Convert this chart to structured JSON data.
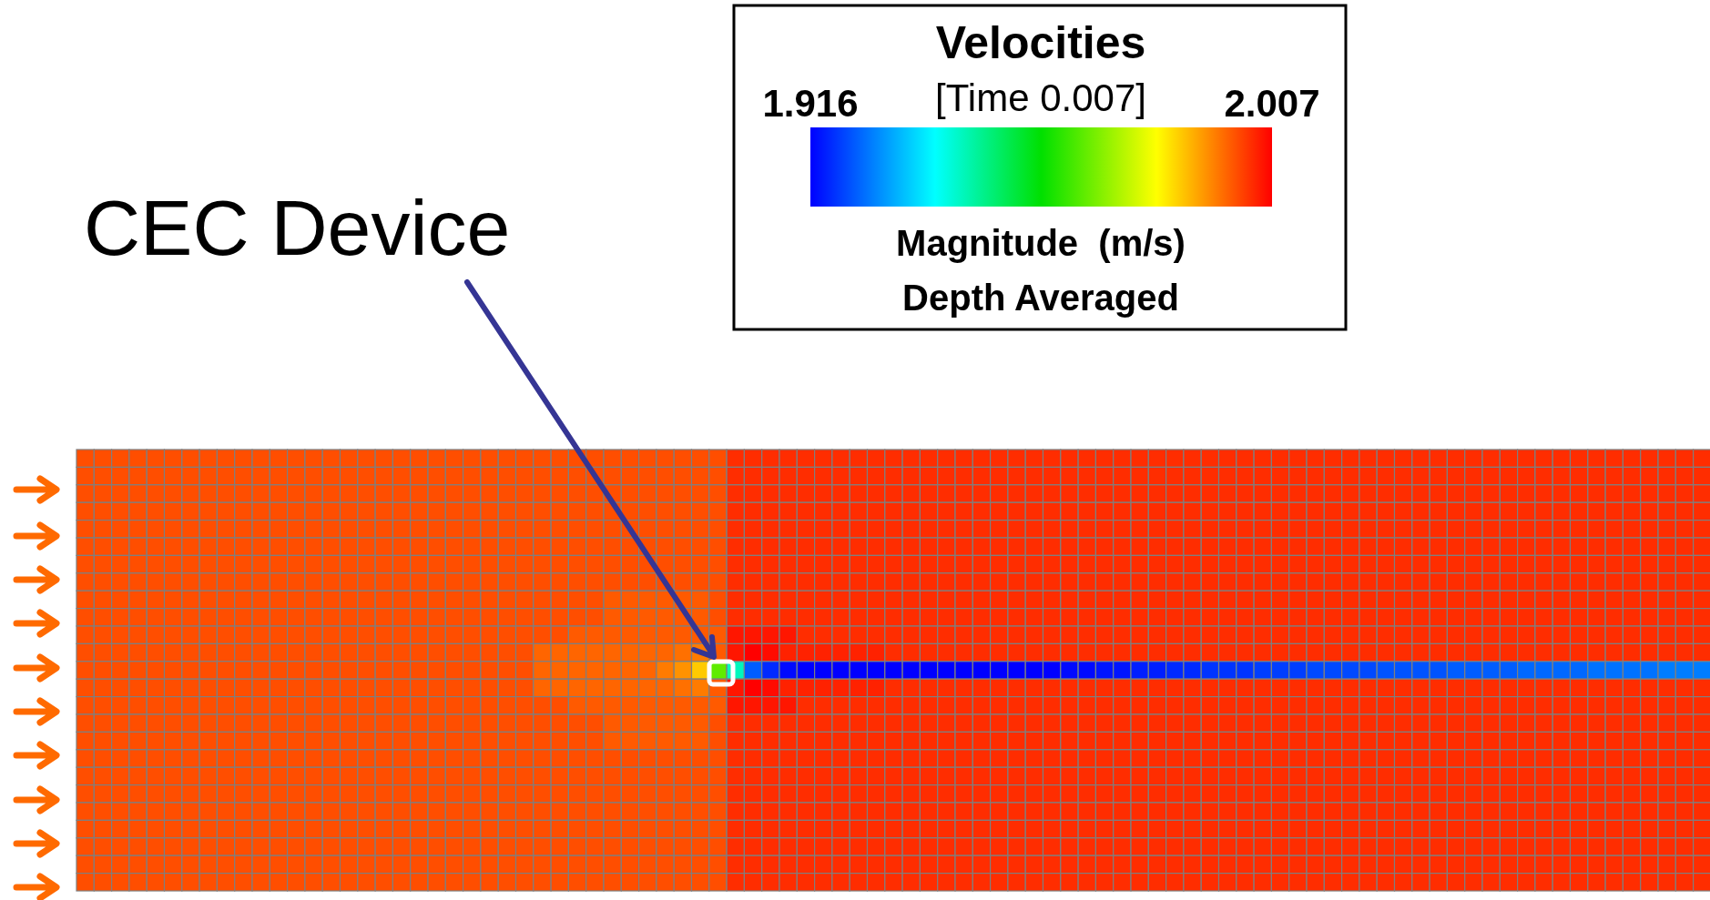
{
  "chart_data": {
    "type": "heatmap",
    "title": "Velocities",
    "subtitle": "[Time 0.007]",
    "clabel": "Magnitude  (m/s)",
    "annotations": [
      "Depth Averaged",
      "CEC Device"
    ],
    "clim": [
      1.916,
      2.007
    ],
    "cticks": [
      1.916,
      2.007
    ],
    "categories": [
      null,
      null,
      null,
      null,
      null,
      null,
      null,
      null,
      null,
      null,
      null,
      null,
      null,
      null,
      null,
      null,
      null,
      null,
      null,
      null,
      null,
      null,
      null,
      null,
      null,
      null,
      null,
      null,
      null,
      null,
      null,
      null,
      null,
      null,
      null,
      null,
      null,
      null,
      null,
      null,
      null,
      null,
      null,
      null,
      null,
      null,
      null,
      null,
      null,
      null,
      null,
      null,
      null,
      null,
      null,
      null,
      null,
      null,
      null,
      null,
      null,
      null,
      null,
      null,
      null,
      null,
      null,
      null,
      null,
      null,
      null,
      null,
      null,
      null,
      null,
      null,
      null,
      null,
      null,
      null,
      null,
      null,
      null,
      null,
      null,
      null,
      null,
      null,
      null,
      null,
      null,
      null,
      null
    ],
    "y_categories": [
      null,
      null,
      null,
      null,
      null,
      null,
      null,
      null,
      null,
      null,
      null,
      null,
      null,
      null,
      null,
      null,
      null,
      null,
      null,
      null,
      null,
      null,
      null,
      null,
      null
    ],
    "cells": [
      [
        2,
        2,
        2,
        2,
        2,
        2,
        2,
        2,
        2,
        2,
        2,
        2,
        2,
        2,
        2,
        2,
        2,
        2,
        2,
        2,
        2,
        2,
        2,
        2,
        2,
        2,
        2,
        2,
        2,
        2,
        2,
        2,
        2,
        2,
        2,
        2,
        2,
        2.003,
        2.003,
        2.003,
        2.003,
        2.003,
        2.003,
        2.003,
        2.003,
        2.003,
        2.003,
        2.003,
        2.003,
        2.003,
        2.003,
        2.003,
        2.003,
        2.003,
        2.003,
        2.003,
        2.003,
        2.003,
        2.003,
        2.003,
        2.003,
        2.003,
        2.003,
        2.003,
        2.003,
        2.003,
        2.003,
        2.003,
        2.003,
        2.003,
        2.003,
        2.003,
        2.003,
        2.003,
        2.003,
        2.003,
        2.003,
        2.003,
        2.003,
        2.003,
        2.003,
        2.003,
        2.003,
        2.003,
        2.003,
        2.003,
        2.003,
        2.003,
        2.003,
        2.003,
        2.003,
        2.003,
        2.003
      ],
      [
        2,
        2,
        2,
        2,
        2,
        2,
        2,
        2,
        2,
        2,
        2,
        2,
        2,
        2,
        2,
        2,
        2,
        2,
        2,
        2,
        2,
        2,
        2,
        2,
        2,
        2,
        2,
        2,
        2,
        2,
        2,
        2,
        2,
        2,
        2,
        2,
        2,
        2.003,
        2.003,
        2.003,
        2.003,
        2.003,
        2.003,
        2.003,
        2.003,
        2.003,
        2.003,
        2.003,
        2.003,
        2.003,
        2.003,
        2.003,
        2.003,
        2.003,
        2.003,
        2.003,
        2.003,
        2.003,
        2.003,
        2.003,
        2.003,
        2.003,
        2.003,
        2.003,
        2.003,
        2.003,
        2.003,
        2.003,
        2.003,
        2.003,
        2.003,
        2.003,
        2.003,
        2.003,
        2.003,
        2.003,
        2.003,
        2.003,
        2.003,
        2.003,
        2.003,
        2.003,
        2.003,
        2.003,
        2.003,
        2.003,
        2.003,
        2.003,
        2.003,
        2.003,
        2.003,
        2.003,
        2.003
      ],
      [
        2,
        2,
        2,
        2,
        2,
        2,
        2,
        2,
        2,
        2,
        2,
        2,
        2,
        2,
        2,
        2,
        2,
        2,
        2,
        2,
        2,
        2,
        2,
        2,
        2,
        2,
        2,
        2,
        2,
        2,
        2,
        2,
        2,
        2,
        2,
        2,
        2,
        2.003,
        2.003,
        2.003,
        2.003,
        2.003,
        2.003,
        2.003,
        2.003,
        2.003,
        2.003,
        2.003,
        2.003,
        2.003,
        2.003,
        2.003,
        2.003,
        2.003,
        2.003,
        2.003,
        2.003,
        2.003,
        2.003,
        2.003,
        2.003,
        2.003,
        2.003,
        2.003,
        2.003,
        2.003,
        2.003,
        2.003,
        2.003,
        2.003,
        2.003,
        2.003,
        2.003,
        2.003,
        2.003,
        2.003,
        2.003,
        2.003,
        2.003,
        2.003,
        2.003,
        2.003,
        2.003,
        2.003,
        2.003,
        2.003,
        2.003,
        2.003,
        2.003,
        2.003,
        2.003,
        2.003,
        2.003
      ],
      [
        2,
        2,
        2,
        2,
        2,
        2,
        2,
        2,
        2,
        2,
        2,
        2,
        2,
        2,
        2,
        2,
        2,
        2,
        2,
        2,
        2,
        2,
        2,
        2,
        2,
        2,
        2,
        2,
        2,
        2,
        2,
        2,
        2,
        2,
        2,
        2,
        2,
        2.003,
        2.003,
        2.003,
        2.003,
        2.003,
        2.003,
        2.003,
        2.003,
        2.003,
        2.003,
        2.003,
        2.003,
        2.003,
        2.003,
        2.003,
        2.003,
        2.003,
        2.003,
        2.003,
        2.003,
        2.003,
        2.003,
        2.003,
        2.003,
        2.003,
        2.003,
        2.003,
        2.003,
        2.003,
        2.003,
        2.003,
        2.003,
        2.003,
        2.003,
        2.003,
        2.003,
        2.003,
        2.003,
        2.003,
        2.003,
        2.003,
        2.003,
        2.003,
        2.003,
        2.003,
        2.003,
        2.003,
        2.003,
        2.003,
        2.003,
        2.003,
        2.003,
        2.003,
        2.003,
        2.003,
        2.003
      ],
      [
        2,
        2,
        2,
        2,
        2,
        2,
        2,
        2,
        2,
        2,
        2,
        2,
        2,
        2,
        2,
        2,
        2,
        2,
        2,
        2,
        2,
        2,
        2,
        2,
        2,
        2,
        2,
        2,
        2,
        2,
        2,
        2,
        2,
        2,
        2,
        2,
        2,
        2.003,
        2.003,
        2.003,
        2.003,
        2.003,
        2.003,
        2.003,
        2.003,
        2.003,
        2.003,
        2.003,
        2.003,
        2.003,
        2.003,
        2.003,
        2.003,
        2.003,
        2.003,
        2.003,
        2.003,
        2.003,
        2.003,
        2.003,
        2.003,
        2.003,
        2.003,
        2.003,
        2.003,
        2.003,
        2.003,
        2.003,
        2.003,
        2.003,
        2.003,
        2.003,
        2.003,
        2.003,
        2.003,
        2.003,
        2.003,
        2.003,
        2.003,
        2.003,
        2.003,
        2.003,
        2.003,
        2.003,
        2.003,
        2.003,
        2.003,
        2.003,
        2.003,
        2.003,
        2.003,
        2.003,
        2.003
      ],
      [
        2,
        2,
        2,
        2,
        2,
        2,
        2,
        2,
        2,
        2,
        2,
        2,
        2,
        2,
        2,
        2,
        2,
        2,
        2,
        2,
        2,
        2,
        2,
        2,
        2,
        2,
        2,
        2,
        2,
        2,
        2,
        2,
        2,
        2,
        2,
        2,
        2,
        2.003,
        2.003,
        2.003,
        2.003,
        2.003,
        2.003,
        2.003,
        2.003,
        2.003,
        2.003,
        2.003,
        2.003,
        2.003,
        2.003,
        2.003,
        2.003,
        2.003,
        2.003,
        2.003,
        2.003,
        2.003,
        2.003,
        2.003,
        2.003,
        2.003,
        2.003,
        2.003,
        2.003,
        2.003,
        2.003,
        2.003,
        2.003,
        2.003,
        2.003,
        2.003,
        2.003,
        2.003,
        2.003,
        2.003,
        2.003,
        2.003,
        2.003,
        2.003,
        2.003,
        2.003,
        2.003,
        2.003,
        2.003,
        2.003,
        2.003,
        2.003,
        2.003,
        2.003,
        2.003,
        2.003,
        2.003
      ],
      [
        2,
        2,
        2,
        2,
        2,
        2,
        2,
        2,
        2,
        2,
        2,
        2,
        2,
        2,
        2,
        2,
        2,
        2,
        2,
        2,
        2,
        2,
        2,
        2,
        2,
        2,
        2,
        2,
        2,
        2,
        2,
        2,
        2,
        2,
        2,
        2,
        2,
        2.003,
        2.003,
        2.003,
        2.003,
        2.003,
        2.003,
        2.003,
        2.003,
        2.003,
        2.003,
        2.003,
        2.003,
        2.003,
        2.003,
        2.003,
        2.003,
        2.003,
        2.003,
        2.003,
        2.003,
        2.003,
        2.003,
        2.003,
        2.003,
        2.003,
        2.003,
        2.003,
        2.003,
        2.003,
        2.003,
        2.003,
        2.003,
        2.003,
        2.003,
        2.003,
        2.003,
        2.003,
        2.003,
        2.003,
        2.003,
        2.003,
        2.003,
        2.003,
        2.003,
        2.003,
        2.003,
        2.003,
        2.003,
        2.003,
        2.003,
        2.003,
        2.003,
        2.003,
        2.003,
        2.003,
        2.003
      ],
      [
        2,
        2,
        2,
        2,
        2,
        2,
        2,
        2,
        2,
        2,
        2,
        2,
        2,
        2,
        2,
        2,
        2,
        2,
        2,
        2,
        2,
        2,
        2,
        2,
        2,
        2,
        2,
        2,
        2,
        2,
        2,
        2,
        2,
        2,
        2,
        2,
        2,
        2.003,
        2.003,
        2.003,
        2.003,
        2.003,
        2.003,
        2.003,
        2.003,
        2.003,
        2.003,
        2.003,
        2.003,
        2.003,
        2.003,
        2.003,
        2.003,
        2.003,
        2.003,
        2.003,
        2.003,
        2.003,
        2.003,
        2.003,
        2.003,
        2.003,
        2.003,
        2.003,
        2.003,
        2.003,
        2.003,
        2.003,
        2.003,
        2.003,
        2.003,
        2.003,
        2.003,
        2.003,
        2.003,
        2.003,
        2.003,
        2.003,
        2.003,
        2.003,
        2.003,
        2.003,
        2.003,
        2.003,
        2.003,
        2.003,
        2.003,
        2.003,
        2.003,
        2.003,
        2.003,
        2.003,
        2.003
      ],
      [
        2,
        2,
        2,
        2,
        2,
        2,
        2,
        2,
        2,
        2,
        2,
        2,
        2,
        2,
        2,
        2,
        2,
        2,
        2,
        2,
        2,
        2,
        2,
        2,
        2,
        2,
        2,
        2,
        2,
        2,
        1.999,
        1.999,
        1.999,
        1.999,
        1.999,
        1.999,
        2,
        2.003,
        2.003,
        2.003,
        2.003,
        2.003,
        2.003,
        2.003,
        2.003,
        2.003,
        2.003,
        2.003,
        2.003,
        2.003,
        2.003,
        2.003,
        2.003,
        2.003,
        2.003,
        2.003,
        2.003,
        2.003,
        2.003,
        2.003,
        2.003,
        2.003,
        2.003,
        2.003,
        2.003,
        2.003,
        2.003,
        2.003,
        2.003,
        2.003,
        2.003,
        2.003,
        2.003,
        2.003,
        2.003,
        2.003,
        2.003,
        2.003,
        2.003,
        2.003,
        2.003,
        2.003,
        2.003,
        2.003,
        2.003,
        2.003,
        2.003,
        2.003,
        2.003,
        2.003,
        2.003,
        2.003,
        2.003
      ],
      [
        2,
        2,
        2,
        2,
        2,
        2,
        2,
        2,
        2,
        2,
        2,
        2,
        2,
        2,
        2,
        2,
        2,
        2,
        2,
        2,
        2,
        2,
        2,
        2,
        2,
        2,
        2,
        2,
        2,
        2,
        1.999,
        1.999,
        1.999,
        1.999,
        1.999,
        1.999,
        2,
        2.003,
        2.003,
        2.003,
        2.003,
        2.003,
        2.003,
        2.003,
        2.003,
        2.003,
        2.003,
        2.003,
        2.003,
        2.003,
        2.003,
        2.003,
        2.003,
        2.003,
        2.003,
        2.003,
        2.003,
        2.003,
        2.003,
        2.003,
        2.003,
        2.003,
        2.003,
        2.003,
        2.003,
        2.003,
        2.003,
        2.003,
        2.003,
        2.003,
        2.003,
        2.003,
        2.003,
        2.003,
        2.003,
        2.003,
        2.003,
        2.003,
        2.003,
        2.003,
        2.003,
        2.003,
        2.003,
        2.003,
        2.003,
        2.003,
        2.003,
        2.003,
        2.003,
        2.003,
        2.003,
        2.003,
        2.003
      ],
      [
        2,
        2,
        2,
        2,
        2,
        2,
        2,
        2,
        2,
        2,
        2,
        2,
        2,
        2,
        2,
        2,
        2,
        2,
        2,
        2,
        2,
        2,
        2,
        2,
        2,
        2,
        2,
        2,
        1.999,
        1.999,
        1.999,
        1.999,
        1.999,
        1.999,
        1.999,
        1.999,
        1.999,
        2.005,
        2.005,
        2.005,
        2.005,
        2.003,
        2.003,
        2.003,
        2.003,
        2.003,
        2.003,
        2.003,
        2.003,
        2.003,
        2.003,
        2.003,
        2.003,
        2.003,
        2.003,
        2.003,
        2.003,
        2.003,
        2.003,
        2.003,
        2.003,
        2.003,
        2.003,
        2.003,
        2.003,
        2.003,
        2.003,
        2.003,
        2.003,
        2.003,
        2.003,
        2.003,
        2.003,
        2.003,
        2.003,
        2.003,
        2.003,
        2.003,
        2.003,
        2.003,
        2.003,
        2.003,
        2.003,
        2.003,
        2.003,
        2.003,
        2.003,
        2.003,
        2.003,
        2.003,
        2.003,
        2.003,
        2.003
      ],
      [
        2,
        2,
        2,
        2,
        2,
        2,
        2,
        2,
        2,
        2,
        2,
        2,
        2,
        2,
        2,
        2,
        2,
        2,
        2,
        2,
        2,
        2,
        2,
        2,
        2,
        2,
        1.998,
        1.998,
        1.998,
        1.998,
        1.998,
        1.998,
        1.998,
        1.998,
        1.997,
        1.996,
        1.999,
        2.005,
        2.007,
        2.006,
        2.004,
        2.004,
        2.004,
        2.004,
        2.004,
        2.004,
        2.003,
        2.003,
        2.003,
        2.003,
        2.003,
        2.003,
        2.003,
        2.003,
        2.003,
        2.003,
        2.003,
        2.003,
        2.003,
        2.003,
        2.003,
        2.003,
        2.003,
        2.003,
        2.003,
        2.003,
        2.003,
        2.003,
        2.003,
        2.003,
        2.003,
        2.003,
        2.003,
        2.003,
        2.003,
        2.003,
        2.003,
        2.003,
        2.003,
        2.003,
        2.003,
        2.003,
        2.003,
        2.003,
        2.003,
        2.003,
        2.003,
        2.003,
        2.003,
        2.003,
        2.003,
        2.003,
        2.003
      ],
      [
        2,
        2,
        2,
        2,
        2,
        2,
        2,
        2,
        2,
        2,
        2,
        2,
        2,
        2,
        2,
        2,
        2,
        2,
        2,
        2,
        2,
        2,
        2,
        2,
        2,
        2,
        1.998,
        1.998,
        1.998,
        1.998,
        1.998,
        1.998,
        1.998,
        1.996,
        1.994,
        1.989,
        1.97,
        1.946,
        1.925,
        1.92,
        1.917,
        1.916,
        1.916,
        1.916,
        1.916,
        1.916,
        1.916,
        1.916,
        1.916,
        1.916,
        1.916,
        1.916,
        1.916,
        1.916,
        1.916,
        1.916,
        1.917,
        1.917,
        1.918,
        1.918,
        1.919,
        1.919,
        1.92,
        1.92,
        1.921,
        1.921,
        1.921,
        1.922,
        1.922,
        1.922,
        1.923,
        1.923,
        1.923,
        1.923,
        1.924,
        1.924,
        1.924,
        1.924,
        1.925,
        1.925,
        1.925,
        1.925,
        1.926,
        1.926,
        1.926,
        1.926,
        1.927,
        1.927,
        1.927,
        1.927,
        1.928,
        1.928,
        1.928
      ],
      [
        2,
        2,
        2,
        2,
        2,
        2,
        2,
        2,
        2,
        2,
        2,
        2,
        2,
        2,
        2,
        2,
        2,
        2,
        2,
        2,
        2,
        2,
        2,
        2,
        2,
        2,
        1.998,
        1.998,
        1.998,
        1.998,
        1.998,
        1.998,
        1.998,
        1.998,
        1.997,
        1.996,
        1.999,
        2.005,
        2.007,
        2.006,
        2.004,
        2.004,
        2.004,
        2.004,
        2.004,
        2.004,
        2.003,
        2.003,
        2.003,
        2.003,
        2.003,
        2.003,
        2.003,
        2.003,
        2.003,
        2.003,
        2.003,
        2.003,
        2.003,
        2.003,
        2.003,
        2.003,
        2.003,
        2.003,
        2.003,
        2.003,
        2.003,
        2.003,
        2.003,
        2.003,
        2.003,
        2.003,
        2.003,
        2.003,
        2.003,
        2.003,
        2.003,
        2.003,
        2.003,
        2.003,
        2.003,
        2.003,
        2.003,
        2.003,
        2.003,
        2.003,
        2.003,
        2.003,
        2.003,
        2.003,
        2.003,
        2.003,
        2.003
      ],
      [
        2,
        2,
        2,
        2,
        2,
        2,
        2,
        2,
        2,
        2,
        2,
        2,
        2,
        2,
        2,
        2,
        2,
        2,
        2,
        2,
        2,
        2,
        2,
        2,
        2,
        2,
        2,
        2,
        1.999,
        1.999,
        1.999,
        1.999,
        1.999,
        1.999,
        1.999,
        1.999,
        1.999,
        2.005,
        2.005,
        2.005,
        2.005,
        2.003,
        2.003,
        2.003,
        2.003,
        2.003,
        2.003,
        2.003,
        2.003,
        2.003,
        2.003,
        2.003,
        2.003,
        2.003,
        2.003,
        2.003,
        2.003,
        2.003,
        2.003,
        2.003,
        2.003,
        2.003,
        2.003,
        2.003,
        2.003,
        2.003,
        2.003,
        2.003,
        2.003,
        2.003,
        2.003,
        2.003,
        2.003,
        2.003,
        2.003,
        2.003,
        2.003,
        2.003,
        2.003,
        2.003,
        2.003,
        2.003,
        2.003,
        2.003,
        2.003,
        2.003,
        2.003,
        2.003,
        2.003,
        2.003,
        2.003,
        2.003,
        2.003
      ],
      [
        2,
        2,
        2,
        2,
        2,
        2,
        2,
        2,
        2,
        2,
        2,
        2,
        2,
        2,
        2,
        2,
        2,
        2,
        2,
        2,
        2,
        2,
        2,
        2,
        2,
        2,
        2,
        2,
        2,
        2,
        1.999,
        1.999,
        1.999,
        1.999,
        1.999,
        1.999,
        2,
        2.003,
        2.003,
        2.003,
        2.003,
        2.003,
        2.003,
        2.003,
        2.003,
        2.003,
        2.003,
        2.003,
        2.003,
        2.003,
        2.003,
        2.003,
        2.003,
        2.003,
        2.003,
        2.003,
        2.003,
        2.003,
        2.003,
        2.003,
        2.003,
        2.003,
        2.003,
        2.003,
        2.003,
        2.003,
        2.003,
        2.003,
        2.003,
        2.003,
        2.003,
        2.003,
        2.003,
        2.003,
        2.003,
        2.003,
        2.003,
        2.003,
        2.003,
        2.003,
        2.003,
        2.003,
        2.003,
        2.003,
        2.003,
        2.003,
        2.003,
        2.003,
        2.003,
        2.003,
        2.003,
        2.003,
        2.003
      ],
      [
        2,
        2,
        2,
        2,
        2,
        2,
        2,
        2,
        2,
        2,
        2,
        2,
        2,
        2,
        2,
        2,
        2,
        2,
        2,
        2,
        2,
        2,
        2,
        2,
        2,
        2,
        2,
        2,
        2,
        2,
        1.999,
        1.999,
        1.999,
        1.999,
        1.999,
        1.999,
        2,
        2.003,
        2.003,
        2.003,
        2.003,
        2.003,
        2.003,
        2.003,
        2.003,
        2.003,
        2.003,
        2.003,
        2.003,
        2.003,
        2.003,
        2.003,
        2.003,
        2.003,
        2.003,
        2.003,
        2.003,
        2.003,
        2.003,
        2.003,
        2.003,
        2.003,
        2.003,
        2.003,
        2.003,
        2.003,
        2.003,
        2.003,
        2.003,
        2.003,
        2.003,
        2.003,
        2.003,
        2.003,
        2.003,
        2.003,
        2.003,
        2.003,
        2.003,
        2.003,
        2.003,
        2.003,
        2.003,
        2.003,
        2.003,
        2.003,
        2.003,
        2.003,
        2.003,
        2.003,
        2.003,
        2.003,
        2.003
      ],
      [
        2,
        2,
        2,
        2,
        2,
        2,
        2,
        2,
        2,
        2,
        2,
        2,
        2,
        2,
        2,
        2,
        2,
        2,
        2,
        2,
        2,
        2,
        2,
        2,
        2,
        2,
        2,
        2,
        2,
        2,
        2,
        2,
        2,
        2,
        2,
        2,
        2,
        2.003,
        2.003,
        2.003,
        2.003,
        2.003,
        2.003,
        2.003,
        2.003,
        2.003,
        2.003,
        2.003,
        2.003,
        2.003,
        2.003,
        2.003,
        2.003,
        2.003,
        2.003,
        2.003,
        2.003,
        2.003,
        2.003,
        2.003,
        2.003,
        2.003,
        2.003,
        2.003,
        2.003,
        2.003,
        2.003,
        2.003,
        2.003,
        2.003,
        2.003,
        2.003,
        2.003,
        2.003,
        2.003,
        2.003,
        2.003,
        2.003,
        2.003,
        2.003,
        2.003,
        2.003,
        2.003,
        2.003,
        2.003,
        2.003,
        2.003,
        2.003,
        2.003,
        2.003,
        2.003,
        2.003,
        2.003
      ],
      [
        2,
        2,
        2,
        2,
        2,
        2,
        2,
        2,
        2,
        2,
        2,
        2,
        2,
        2,
        2,
        2,
        2,
        2,
        2,
        2,
        2,
        2,
        2,
        2,
        2,
        2,
        2,
        2,
        2,
        2,
        2,
        2,
        2,
        2,
        2,
        2,
        2,
        2.003,
        2.003,
        2.003,
        2.003,
        2.003,
        2.003,
        2.003,
        2.003,
        2.003,
        2.003,
        2.003,
        2.003,
        2.003,
        2.003,
        2.003,
        2.003,
        2.003,
        2.003,
        2.003,
        2.003,
        2.003,
        2.003,
        2.003,
        2.003,
        2.003,
        2.003,
        2.003,
        2.003,
        2.003,
        2.003,
        2.003,
        2.003,
        2.003,
        2.003,
        2.003,
        2.003,
        2.003,
        2.003,
        2.003,
        2.003,
        2.003,
        2.003,
        2.003,
        2.003,
        2.003,
        2.003,
        2.003,
        2.003,
        2.003,
        2.003,
        2.003,
        2.003,
        2.003,
        2.003,
        2.003,
        2.003
      ],
      [
        2,
        2,
        2,
        2,
        2,
        2,
        2,
        2,
        2,
        2,
        2,
        2,
        2,
        2,
        2,
        2,
        2,
        2,
        2,
        2,
        2,
        2,
        2,
        2,
        2,
        2,
        2,
        2,
        2,
        2,
        2,
        2,
        2,
        2,
        2,
        2,
        2,
        2.003,
        2.003,
        2.003,
        2.003,
        2.003,
        2.003,
        2.003,
        2.003,
        2.003,
        2.003,
        2.003,
        2.003,
        2.003,
        2.003,
        2.003,
        2.003,
        2.003,
        2.003,
        2.003,
        2.003,
        2.003,
        2.003,
        2.003,
        2.003,
        2.003,
        2.003,
        2.003,
        2.003,
        2.003,
        2.003,
        2.003,
        2.003,
        2.003,
        2.003,
        2.003,
        2.003,
        2.003,
        2.003,
        2.003,
        2.003,
        2.003,
        2.003,
        2.003,
        2.003,
        2.003,
        2.003,
        2.003,
        2.003,
        2.003,
        2.003,
        2.003,
        2.003,
        2.003,
        2.003,
        2.003,
        2.003
      ],
      [
        2,
        2,
        2,
        2,
        2,
        2,
        2,
        2,
        2,
        2,
        2,
        2,
        2,
        2,
        2,
        2,
        2,
        2,
        2,
        2,
        2,
        2,
        2,
        2,
        2,
        2,
        2,
        2,
        2,
        2,
        2,
        2,
        2,
        2,
        2,
        2,
        2,
        2.003,
        2.003,
        2.003,
        2.003,
        2.003,
        2.003,
        2.003,
        2.003,
        2.003,
        2.003,
        2.003,
        2.003,
        2.003,
        2.003,
        2.003,
        2.003,
        2.003,
        2.003,
        2.003,
        2.003,
        2.003,
        2.003,
        2.003,
        2.003,
        2.003,
        2.003,
        2.003,
        2.003,
        2.003,
        2.003,
        2.003,
        2.003,
        2.003,
        2.003,
        2.003,
        2.003,
        2.003,
        2.003,
        2.003,
        2.003,
        2.003,
        2.003,
        2.003,
        2.003,
        2.003,
        2.003,
        2.003,
        2.003,
        2.003,
        2.003,
        2.003,
        2.003,
        2.003,
        2.003,
        2.003,
        2.003
      ],
      [
        2,
        2,
        2,
        2,
        2,
        2,
        2,
        2,
        2,
        2,
        2,
        2,
        2,
        2,
        2,
        2,
        2,
        2,
        2,
        2,
        2,
        2,
        2,
        2,
        2,
        2,
        2,
        2,
        2,
        2,
        2,
        2,
        2,
        2,
        2,
        2,
        2,
        2.003,
        2.003,
        2.003,
        2.003,
        2.003,
        2.003,
        2.003,
        2.003,
        2.003,
        2.003,
        2.003,
        2.003,
        2.003,
        2.003,
        2.003,
        2.003,
        2.003,
        2.003,
        2.003,
        2.003,
        2.003,
        2.003,
        2.003,
        2.003,
        2.003,
        2.003,
        2.003,
        2.003,
        2.003,
        2.003,
        2.003,
        2.003,
        2.003,
        2.003,
        2.003,
        2.003,
        2.003,
        2.003,
        2.003,
        2.003,
        2.003,
        2.003,
        2.003,
        2.003,
        2.003,
        2.003,
        2.003,
        2.003,
        2.003,
        2.003,
        2.003,
        2.003,
        2.003,
        2.003,
        2.003,
        2.003
      ],
      [
        2,
        2,
        2,
        2,
        2,
        2,
        2,
        2,
        2,
        2,
        2,
        2,
        2,
        2,
        2,
        2,
        2,
        2,
        2,
        2,
        2,
        2,
        2,
        2,
        2,
        2,
        2,
        2,
        2,
        2,
        2,
        2,
        2,
        2,
        2,
        2,
        2,
        2.003,
        2.003,
        2.003,
        2.003,
        2.003,
        2.003,
        2.003,
        2.003,
        2.003,
        2.003,
        2.003,
        2.003,
        2.003,
        2.003,
        2.003,
        2.003,
        2.003,
        2.003,
        2.003,
        2.003,
        2.003,
        2.003,
        2.003,
        2.003,
        2.003,
        2.003,
        2.003,
        2.003,
        2.003,
        2.003,
        2.003,
        2.003,
        2.003,
        2.003,
        2.003,
        2.003,
        2.003,
        2.003,
        2.003,
        2.003,
        2.003,
        2.003,
        2.003,
        2.003,
        2.003,
        2.003,
        2.003,
        2.003,
        2.003,
        2.003,
        2.003,
        2.003,
        2.003,
        2.003,
        2.003,
        2.003
      ],
      [
        2,
        2,
        2,
        2,
        2,
        2,
        2,
        2,
        2,
        2,
        2,
        2,
        2,
        2,
        2,
        2,
        2,
        2,
        2,
        2,
        2,
        2,
        2,
        2,
        2,
        2,
        2,
        2,
        2,
        2,
        2,
        2,
        2,
        2,
        2,
        2,
        2,
        2.003,
        2.003,
        2.003,
        2.003,
        2.003,
        2.003,
        2.003,
        2.003,
        2.003,
        2.003,
        2.003,
        2.003,
        2.003,
        2.003,
        2.003,
        2.003,
        2.003,
        2.003,
        2.003,
        2.003,
        2.003,
        2.003,
        2.003,
        2.003,
        2.003,
        2.003,
        2.003,
        2.003,
        2.003,
        2.003,
        2.003,
        2.003,
        2.003,
        2.003,
        2.003,
        2.003,
        2.003,
        2.003,
        2.003,
        2.003,
        2.003,
        2.003,
        2.003,
        2.003,
        2.003,
        2.003,
        2.003,
        2.003,
        2.003,
        2.003,
        2.003,
        2.003,
        2.003,
        2.003,
        2.003,
        2.003
      ],
      [
        2,
        2,
        2,
        2,
        2,
        2,
        2,
        2,
        2,
        2,
        2,
        2,
        2,
        2,
        2,
        2,
        2,
        2,
        2,
        2,
        2,
        2,
        2,
        2,
        2,
        2,
        2,
        2,
        2,
        2,
        2,
        2,
        2,
        2,
        2,
        2,
        2,
        2.003,
        2.003,
        2.003,
        2.003,
        2.003,
        2.003,
        2.003,
        2.003,
        2.003,
        2.003,
        2.003,
        2.003,
        2.003,
        2.003,
        2.003,
        2.003,
        2.003,
        2.003,
        2.003,
        2.003,
        2.003,
        2.003,
        2.003,
        2.003,
        2.003,
        2.003,
        2.003,
        2.003,
        2.003,
        2.003,
        2.003,
        2.003,
        2.003,
        2.003,
        2.003,
        2.003,
        2.003,
        2.003,
        2.003,
        2.003,
        2.003,
        2.003,
        2.003,
        2.003,
        2.003,
        2.003,
        2.003,
        2.003,
        2.003,
        2.003,
        2.003,
        2.003,
        2.003,
        2.003,
        2.003,
        2.003
      ]
    ]
  }
}
